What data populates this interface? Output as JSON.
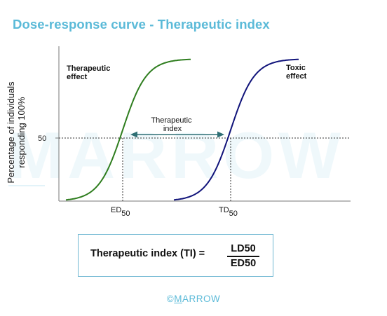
{
  "page": {
    "title": "Dose-response curve - Therapeutic index",
    "watermark": "MARROW",
    "copyright_symbol": "©",
    "copyright_first": "M",
    "copyright_rest": "ARROW"
  },
  "chart_data": {
    "type": "line",
    "ylabel": "Percentage of individuals responding 100%",
    "ytick_label": "50",
    "ylim": [
      0,
      100
    ],
    "grid": false,
    "series": [
      {
        "name": "Therapeutic effect",
        "color": "#2e7d1e",
        "midpoint_label": "ED",
        "midpoint_sub": "50",
        "y": [
          0,
          50,
          100
        ]
      },
      {
        "name": "Toxic effect",
        "color": "#10137a",
        "midpoint_label": "TD",
        "midpoint_sub": "50",
        "y": [
          0,
          50,
          100
        ]
      }
    ],
    "annotation": {
      "text_line1": "Therapeutic",
      "text_line2": "index",
      "color": "#2f6f74"
    }
  },
  "formula": {
    "lhs": "Therapeutic index (TI) =",
    "numerator": "LD50",
    "denominator": "ED50"
  }
}
